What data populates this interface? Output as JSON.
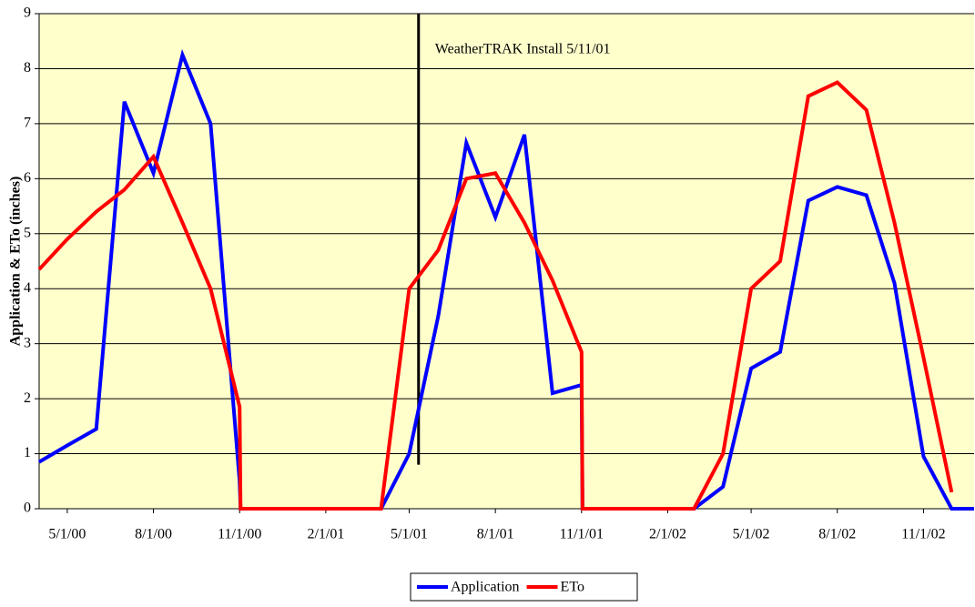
{
  "chart_data": {
    "type": "line",
    "y_label": "Application & ETo (inches)",
    "x": [
      "4/1/00",
      "5/1/00",
      "6/1/00",
      "7/1/00",
      "8/1/00",
      "9/1/00",
      "10/1/00",
      "11/1/00",
      "11/2/00",
      "12/1/00",
      "1/1/01",
      "2/1/01",
      "3/1/01",
      "4/1/01",
      "5/1/01",
      "6/1/01",
      "7/1/01",
      "8/1/01",
      "9/1/01",
      "10/1/01",
      "11/1/01",
      "11/2/01",
      "12/1/01",
      "1/1/02",
      "2/1/02",
      "3/1/02",
      "4/1/02",
      "5/1/02",
      "6/1/02",
      "7/1/02",
      "8/1/02",
      "9/1/02",
      "10/1/02",
      "11/1/02",
      "12/1/02",
      "12/25/02"
    ],
    "series": [
      {
        "name": "Application",
        "color": "#0000ff",
        "values": [
          0.85,
          1.15,
          1.45,
          7.4,
          6.1,
          8.25,
          7.0,
          0.5,
          0,
          0,
          0,
          0,
          0,
          0,
          1.0,
          3.5,
          6.65,
          5.3,
          6.8,
          2.1,
          2.25,
          0,
          0,
          0,
          0,
          0,
          0.4,
          2.55,
          2.85,
          5.6,
          5.85,
          5.7,
          4.1,
          0.95,
          0,
          0
        ]
      },
      {
        "name": "ETo",
        "color": "#ff0000",
        "values": [
          4.35,
          4.9,
          5.4,
          5.8,
          6.4,
          5.2,
          4.0,
          1.85,
          0,
          0,
          0,
          0,
          0,
          0,
          4.0,
          4.7,
          6.0,
          6.1,
          5.2,
          4.15,
          2.85,
          0,
          0,
          0,
          0,
          0,
          1.0,
          4.0,
          4.5,
          7.5,
          7.75,
          7.25,
          5.2,
          2.75,
          0.3,
          null
        ]
      }
    ],
    "xlim": [
      "4/1/00",
      "12/25/02"
    ],
    "xticks": [
      "5/1/00",
      "8/1/00",
      "11/1/00",
      "2/1/01",
      "5/1/01",
      "8/1/01",
      "11/1/01",
      "2/1/02",
      "5/1/02",
      "8/1/02",
      "11/1/02"
    ],
    "ylim": [
      0,
      9
    ],
    "yticks": [
      0,
      1,
      2,
      3,
      4,
      5,
      6,
      7,
      8,
      9
    ],
    "grid": true,
    "background": "#ffffcc",
    "legend": "bottom",
    "annotation": {
      "text": "WeatherTRAK Install 5/11/01",
      "x": "5/11/01",
      "y": [
        0.8,
        9
      ],
      "color": "#000000"
    }
  }
}
